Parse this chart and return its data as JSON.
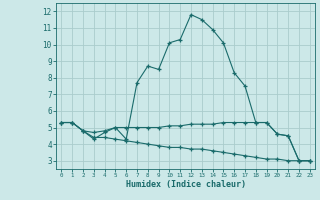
{
  "bg_color": "#cce8e8",
  "grid_color": "#aacccc",
  "line_color": "#1a6b6b",
  "xlabel": "Humidex (Indice chaleur)",
  "xlim": [
    -0.5,
    23.5
  ],
  "ylim": [
    2.5,
    12.5
  ],
  "xticks": [
    0,
    1,
    2,
    3,
    4,
    5,
    6,
    7,
    8,
    9,
    10,
    11,
    12,
    13,
    14,
    15,
    16,
    17,
    18,
    19,
    20,
    21,
    22,
    23
  ],
  "yticks": [
    3,
    4,
    5,
    6,
    7,
    8,
    9,
    10,
    11,
    12
  ],
  "line1_x": [
    0,
    1,
    2,
    3,
    4,
    5,
    6,
    7,
    8,
    9,
    10,
    11,
    12,
    13,
    14,
    15,
    16,
    17,
    18,
    19,
    20,
    21,
    22,
    23
  ],
  "line1_y": [
    5.3,
    5.3,
    4.8,
    4.3,
    4.7,
    5.0,
    4.3,
    7.7,
    8.7,
    8.5,
    10.1,
    10.3,
    11.8,
    11.5,
    10.9,
    10.1,
    8.3,
    7.5,
    5.3,
    5.3,
    4.6,
    4.5,
    3.0,
    3.0
  ],
  "line2_x": [
    0,
    1,
    2,
    3,
    4,
    5,
    6,
    7,
    8,
    9,
    10,
    11,
    12,
    13,
    14,
    15,
    16,
    17,
    18,
    19,
    20,
    21,
    22,
    23
  ],
  "line2_y": [
    5.3,
    5.3,
    4.8,
    4.7,
    4.8,
    5.0,
    5.0,
    5.0,
    5.0,
    5.0,
    5.1,
    5.1,
    5.2,
    5.2,
    5.2,
    5.3,
    5.3,
    5.3,
    5.3,
    5.3,
    4.6,
    4.5,
    3.0,
    3.0
  ],
  "line3_x": [
    0,
    1,
    2,
    3,
    4,
    5,
    6,
    7,
    8,
    9,
    10,
    11,
    12,
    13,
    14,
    15,
    16,
    17,
    18,
    19,
    20,
    21,
    22,
    23
  ],
  "line3_y": [
    5.3,
    5.3,
    4.8,
    4.4,
    4.4,
    4.3,
    4.2,
    4.1,
    4.0,
    3.9,
    3.8,
    3.8,
    3.7,
    3.7,
    3.6,
    3.5,
    3.4,
    3.3,
    3.2,
    3.1,
    3.1,
    3.0,
    3.0,
    3.0
  ]
}
